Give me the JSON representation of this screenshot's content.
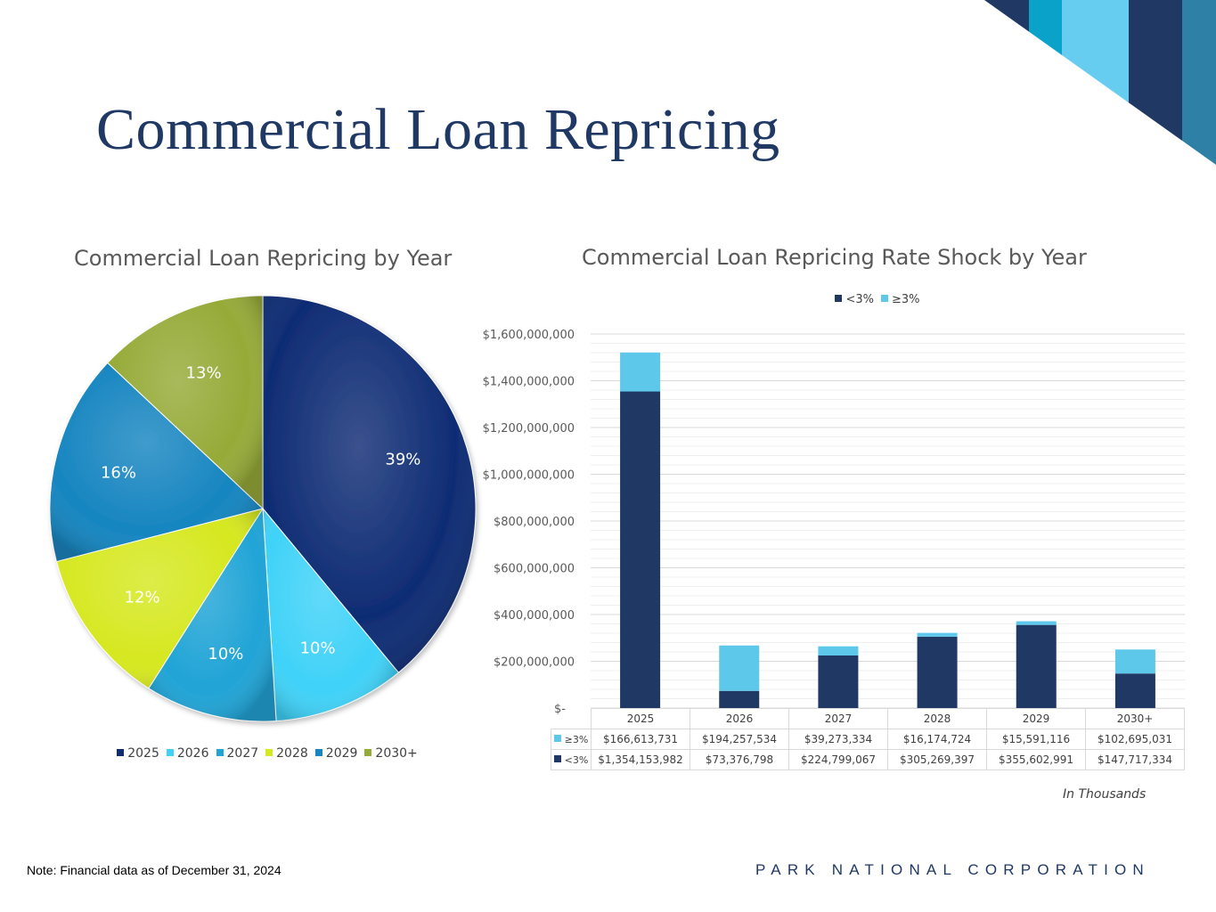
{
  "page": {
    "title": "Commercial Loan Repricing",
    "footnote": "Note: Financial data as of December 31, 2024",
    "company": "PARK NATIONAL CORPORATION",
    "unit_note": "In Thousands"
  },
  "colors": {
    "title": "#1f3864",
    "corner": [
      "#1f3864",
      "#0aa2c9",
      "#66ccf0",
      "#1f3864",
      "#2e80a6"
    ]
  },
  "chart_data": [
    {
      "type": "pie",
      "title": "Commercial Loan Repricing by Year",
      "categories": [
        "2025",
        "2026",
        "2027",
        "2028",
        "2029",
        "2030+"
      ],
      "values": [
        39,
        10,
        10,
        12,
        16,
        13
      ],
      "data_labels": [
        "39%",
        "10%",
        "10%",
        "12%",
        "16%",
        "13%"
      ],
      "colors": [
        "#0f2c74",
        "#3fd2f8",
        "#20a4d6",
        "#d6e820",
        "#1685c0",
        "#96aa38"
      ],
      "legend": "bottom"
    },
    {
      "type": "bar",
      "stacked": true,
      "title": "Commercial Loan Repricing Rate Shock by Year",
      "categories": [
        "2025",
        "2026",
        "2027",
        "2028",
        "2029",
        "2030+"
      ],
      "series": [
        {
          "name": "<3%",
          "color": "#1f3864",
          "values": [
            1354153982,
            73376798,
            224799067,
            305269397,
            355602991,
            147717334
          ],
          "labels": [
            "$1,354,153,982",
            "$73,376,798",
            "$224,799,067",
            "$305,269,397",
            "$355,602,991",
            "$147,717,334"
          ]
        },
        {
          "name": "≥3%",
          "color": "#5ec8ea",
          "values": [
            166613731,
            194257534,
            39273334,
            16174724,
            15591116,
            102695031
          ],
          "labels": [
            "$166,613,731",
            "$194,257,534",
            "$39,273,334",
            "$16,174,724",
            "$15,591,116",
            "$102,695,031"
          ]
        }
      ],
      "ylim": [
        0,
        1600000000
      ],
      "y_ticks": [
        0,
        200000000,
        400000000,
        600000000,
        800000000,
        1000000000,
        1200000000,
        1400000000,
        1600000000
      ],
      "y_tick_labels": [
        "$-",
        "$200,000,000",
        "$400,000,000",
        "$600,000,000",
        "$800,000,000",
        "$1,000,000,000",
        "$1,200,000,000",
        "$1,400,000,000",
        "$1,600,000,000"
      ],
      "grid": true,
      "legend": "top",
      "data_table": true
    }
  ]
}
